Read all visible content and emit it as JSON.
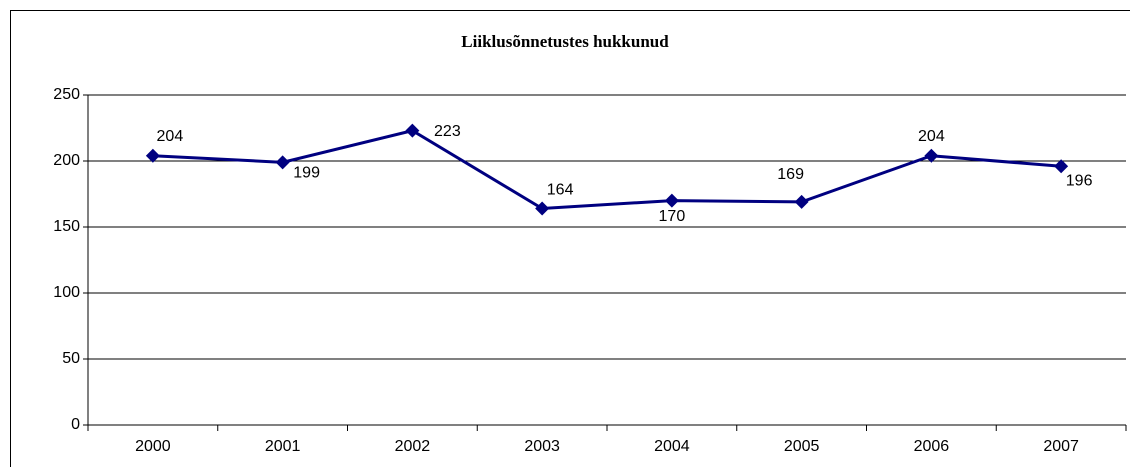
{
  "chart_data": {
    "type": "line",
    "title": "Liiklusõnnetustes hukkunud",
    "categories": [
      "2000",
      "2001",
      "2002",
      "2003",
      "2004",
      "2005",
      "2006",
      "2007"
    ],
    "values": [
      204,
      199,
      223,
      164,
      170,
      169,
      204,
      196
    ],
    "color": "#000080",
    "ylim": [
      0,
      250
    ],
    "yticks": [
      0,
      50,
      100,
      150,
      200,
      250
    ],
    "grid": true
  }
}
